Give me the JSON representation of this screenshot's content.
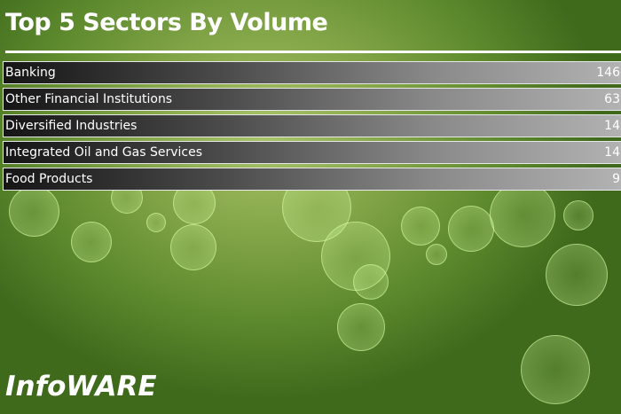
{
  "header": {
    "title": "Top 5 Sectors By Volume"
  },
  "sectors": [
    {
      "name": "Banking",
      "volume": "146"
    },
    {
      "name": "Other Financial Institutions",
      "volume": "63"
    },
    {
      "name": "Diversified Industries",
      "volume": "14"
    },
    {
      "name": "Integrated Oil and Gas Services",
      "volume": "14"
    },
    {
      "name": "Food Products",
      "volume": "9"
    }
  ],
  "footer": {
    "logo": "InfoWARE"
  },
  "colors": {
    "background": "#86a84a",
    "row_dark": "#151515",
    "row_light": "#b2b2b2",
    "text": "#ffffff"
  }
}
